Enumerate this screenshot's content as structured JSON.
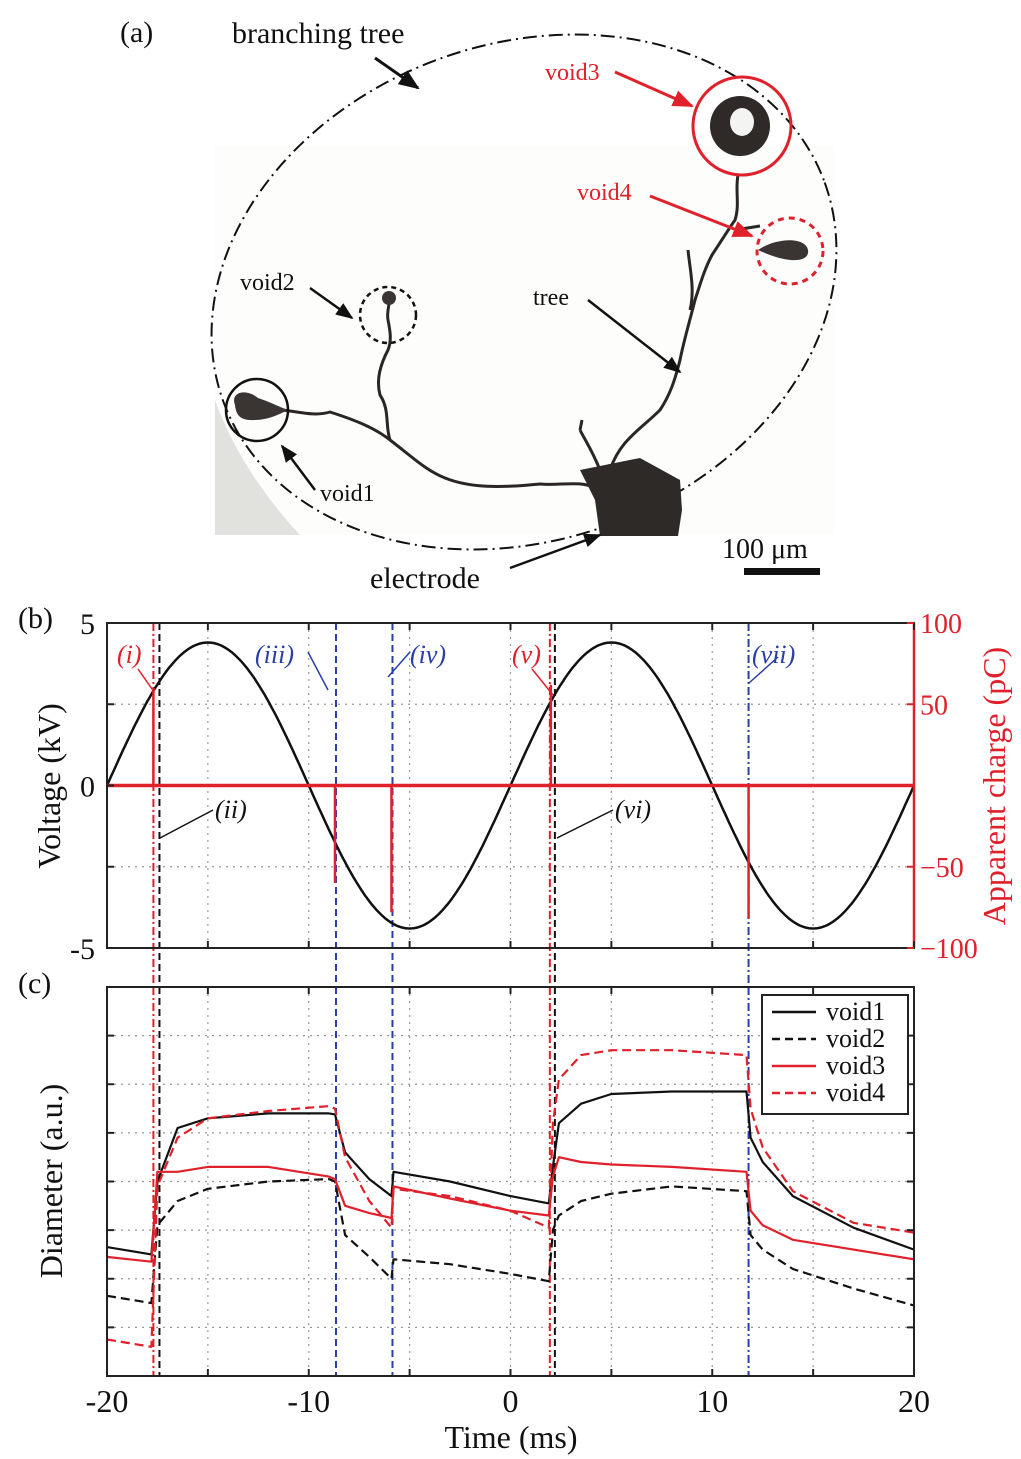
{
  "panel_a": {
    "label": "(a)",
    "annotations": {
      "branching_tree": "branching tree",
      "void1": "void1",
      "void2": "void2",
      "void3": "void3",
      "void4": "void4",
      "tree": "tree",
      "electrode": "electrode",
      "scale_bar": "100 μm"
    },
    "colors": {
      "void3": "#e0202a",
      "void4": "#e0202a",
      "void1": "#111111",
      "void2": "#111111"
    }
  },
  "panel_b": {
    "label": "(b)"
  },
  "panel_c": {
    "label": "(c)"
  },
  "chart_data": [
    {
      "id": "b",
      "type": "line",
      "title": "",
      "xlabel": "Time (ms)",
      "ylabel": "Voltage (kV)",
      "ylabel_right": "Apparent charge (pC)",
      "xlim": [
        -20,
        20
      ],
      "ylim": [
        -5,
        5
      ],
      "ylim_right": [
        -100,
        100
      ],
      "xticks": [
        -20,
        -15,
        -10,
        -5,
        0,
        5,
        10,
        15,
        20
      ],
      "yticks_left_labels": [
        "5",
        "0",
        "-5"
      ],
      "yticks_left": [
        5,
        2.5,
        0,
        -2.5,
        -5
      ],
      "yticks_right_labels": [
        "100",
        "50",
        "−50",
        "−100"
      ],
      "yticks_right": [
        100,
        50,
        -50,
        -100
      ],
      "grid": true,
      "series": [
        {
          "name": "Voltage",
          "color": "#111111",
          "style": "solid",
          "function": "4.4*sin(2*pi*t/20)",
          "amplitude_kV": 4.4,
          "frequency_Hz": 50
        },
        {
          "name": "Apparent charge",
          "color": "#e0202a",
          "style": "solid",
          "axis": "right",
          "pulses": [
            {
              "t": -17.7,
              "q": 60
            },
            {
              "t": -8.7,
              "q": -60
            },
            {
              "t": -5.9,
              "q": -78
            },
            {
              "t": 2.0,
              "q": 62
            },
            {
              "t": 11.8,
              "q": -82
            }
          ]
        }
      ],
      "event_markers": [
        {
          "id": "i",
          "label": "(i)",
          "t": -17.7,
          "color": "#e0202a",
          "style": "dash-dot"
        },
        {
          "id": "ii",
          "label": "(ii)",
          "t": -17.4,
          "color": "#111111",
          "style": "dash"
        },
        {
          "id": "iii",
          "label": "(iii)",
          "t": -8.65,
          "color": "#2a3ea8",
          "style": "dash"
        },
        {
          "id": "iv",
          "label": "(iv)",
          "t": -5.85,
          "color": "#2a3ea8",
          "style": "dash"
        },
        {
          "id": "v",
          "label": "(v)",
          "t": 1.95,
          "color": "#e0202a",
          "style": "dash-dot"
        },
        {
          "id": "vi",
          "label": "(vi)",
          "t": 2.2,
          "color": "#111111",
          "style": "dash"
        },
        {
          "id": "vii",
          "label": "(vii)",
          "t": 11.8,
          "color": "#2a3ea8",
          "style": "dash-dot"
        }
      ]
    },
    {
      "id": "c",
      "type": "line",
      "title": "",
      "xlabel": "Time (ms)",
      "ylabel": "Diameter (a.u.)",
      "xlim": [
        -20,
        20
      ],
      "ylim": [
        0,
        8
      ],
      "xticks": [
        -20,
        -10,
        0,
        10,
        20
      ],
      "xtick_labels": [
        "-20",
        "-10",
        "0",
        "10",
        "20"
      ],
      "grid": true,
      "legend": {
        "position": "upper right",
        "entries": [
          "void1",
          "void2",
          "void3",
          "void4"
        ]
      },
      "x": [
        -20,
        -17.8,
        -17.5,
        -16.5,
        -15,
        -12,
        -9,
        -8.7,
        -8.2,
        -7,
        -5.9,
        -5.8,
        -3,
        0,
        1.9,
        2.1,
        2.4,
        3.5,
        5,
        8,
        11.7,
        11.9,
        12.5,
        14,
        17,
        20
      ],
      "series": [
        {
          "name": "void1",
          "color": "#111111",
          "style": "solid",
          "values": [
            2.65,
            2.5,
            4.0,
            5.1,
            5.3,
            5.4,
            5.4,
            5.38,
            4.6,
            4.05,
            3.7,
            4.2,
            4.0,
            3.7,
            3.55,
            4.3,
            5.2,
            5.6,
            5.8,
            5.85,
            5.85,
            4.9,
            4.4,
            3.7,
            3.05,
            2.6
          ]
        },
        {
          "name": "void2",
          "color": "#111111",
          "style": "dashed",
          "values": [
            1.65,
            1.5,
            3.1,
            3.6,
            3.85,
            4.0,
            4.05,
            4.0,
            2.9,
            2.45,
            2.0,
            2.4,
            2.3,
            2.1,
            1.95,
            3.0,
            3.3,
            3.6,
            3.75,
            3.9,
            3.8,
            2.9,
            2.6,
            2.2,
            1.8,
            1.45
          ]
        },
        {
          "name": "void3",
          "color": "#e0202a",
          "style": "solid",
          "values": [
            2.45,
            2.35,
            4.2,
            4.2,
            4.3,
            4.3,
            4.1,
            4.05,
            3.5,
            3.35,
            3.25,
            3.9,
            3.65,
            3.4,
            3.3,
            4.1,
            4.5,
            4.4,
            4.35,
            4.3,
            4.2,
            3.4,
            3.1,
            2.8,
            2.6,
            2.4
          ]
        },
        {
          "name": "void4",
          "color": "#e0202a",
          "style": "dashed",
          "values": [
            0.75,
            0.6,
            3.9,
            4.9,
            5.3,
            5.45,
            5.55,
            5.5,
            4.5,
            3.6,
            3.05,
            3.85,
            3.7,
            3.4,
            3.05,
            5.2,
            6.1,
            6.6,
            6.7,
            6.7,
            6.6,
            5.5,
            4.7,
            3.8,
            3.15,
            2.95
          ]
        }
      ]
    }
  ]
}
